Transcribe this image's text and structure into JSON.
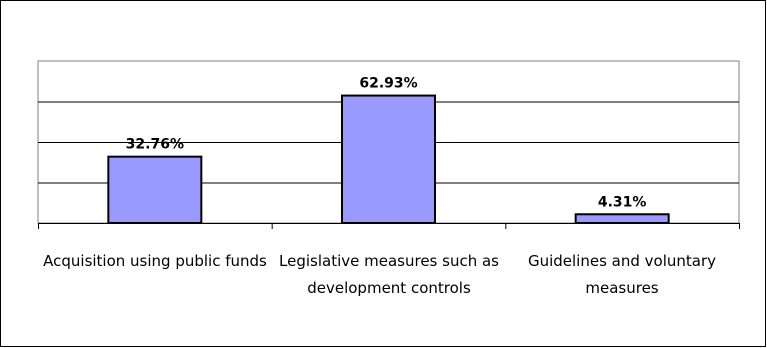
{
  "chart_data": {
    "type": "bar",
    "categories": [
      "Acquisition using public funds",
      "Legislative measures such as development controls",
      "Guidelines and voluntary measures"
    ],
    "values": [
      32.76,
      62.93,
      4.31
    ],
    "value_labels": [
      "32.76%",
      "62.93%",
      "4.31%"
    ],
    "ylim": [
      0,
      80
    ],
    "grid": true,
    "legend": "none",
    "colors": {
      "bar_fill": "#9999ff",
      "bar_stroke": "#000000",
      "plot_bg": "#ffffff",
      "grid": "#000000"
    }
  }
}
